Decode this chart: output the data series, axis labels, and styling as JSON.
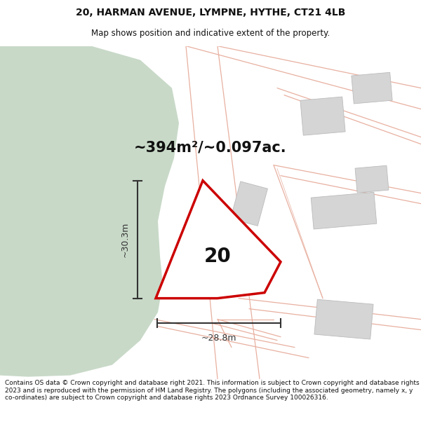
{
  "title_line1": "20, HARMAN AVENUE, LYMPNE, HYTHE, CT21 4LB",
  "title_line2": "Map shows position and indicative extent of the property.",
  "area_text": "~394m²/~0.097ac.",
  "label_20": "20",
  "dim_horiz": "~28.8m",
  "dim_vert": "~30.3m",
  "footer": "Contains OS data © Crown copyright and database right 2021. This information is subject to Crown copyright and database rights 2023 and is reproduced with the permission of HM Land Registry. The polygons (including the associated geometry, namely x, y co-ordinates) are subject to Crown copyright and database rights 2023 Ordnance Survey 100026316.",
  "bg_color": "#ffffff",
  "map_bg": "#f8f8f6",
  "green_color": "#c8d9c8",
  "road_line_color": "#e8b0a0",
  "building_color": "#d5d5d5",
  "building_edge": "#bbbbbb",
  "red_color": "#cc0000",
  "dim_color": "#333333",
  "text_color": "#111111",
  "title_fontsize": 10,
  "subtitle_fontsize": 8.5,
  "area_fontsize": 15,
  "label_fontsize": 20,
  "dim_fontsize": 9,
  "footer_fontsize": 6.5
}
